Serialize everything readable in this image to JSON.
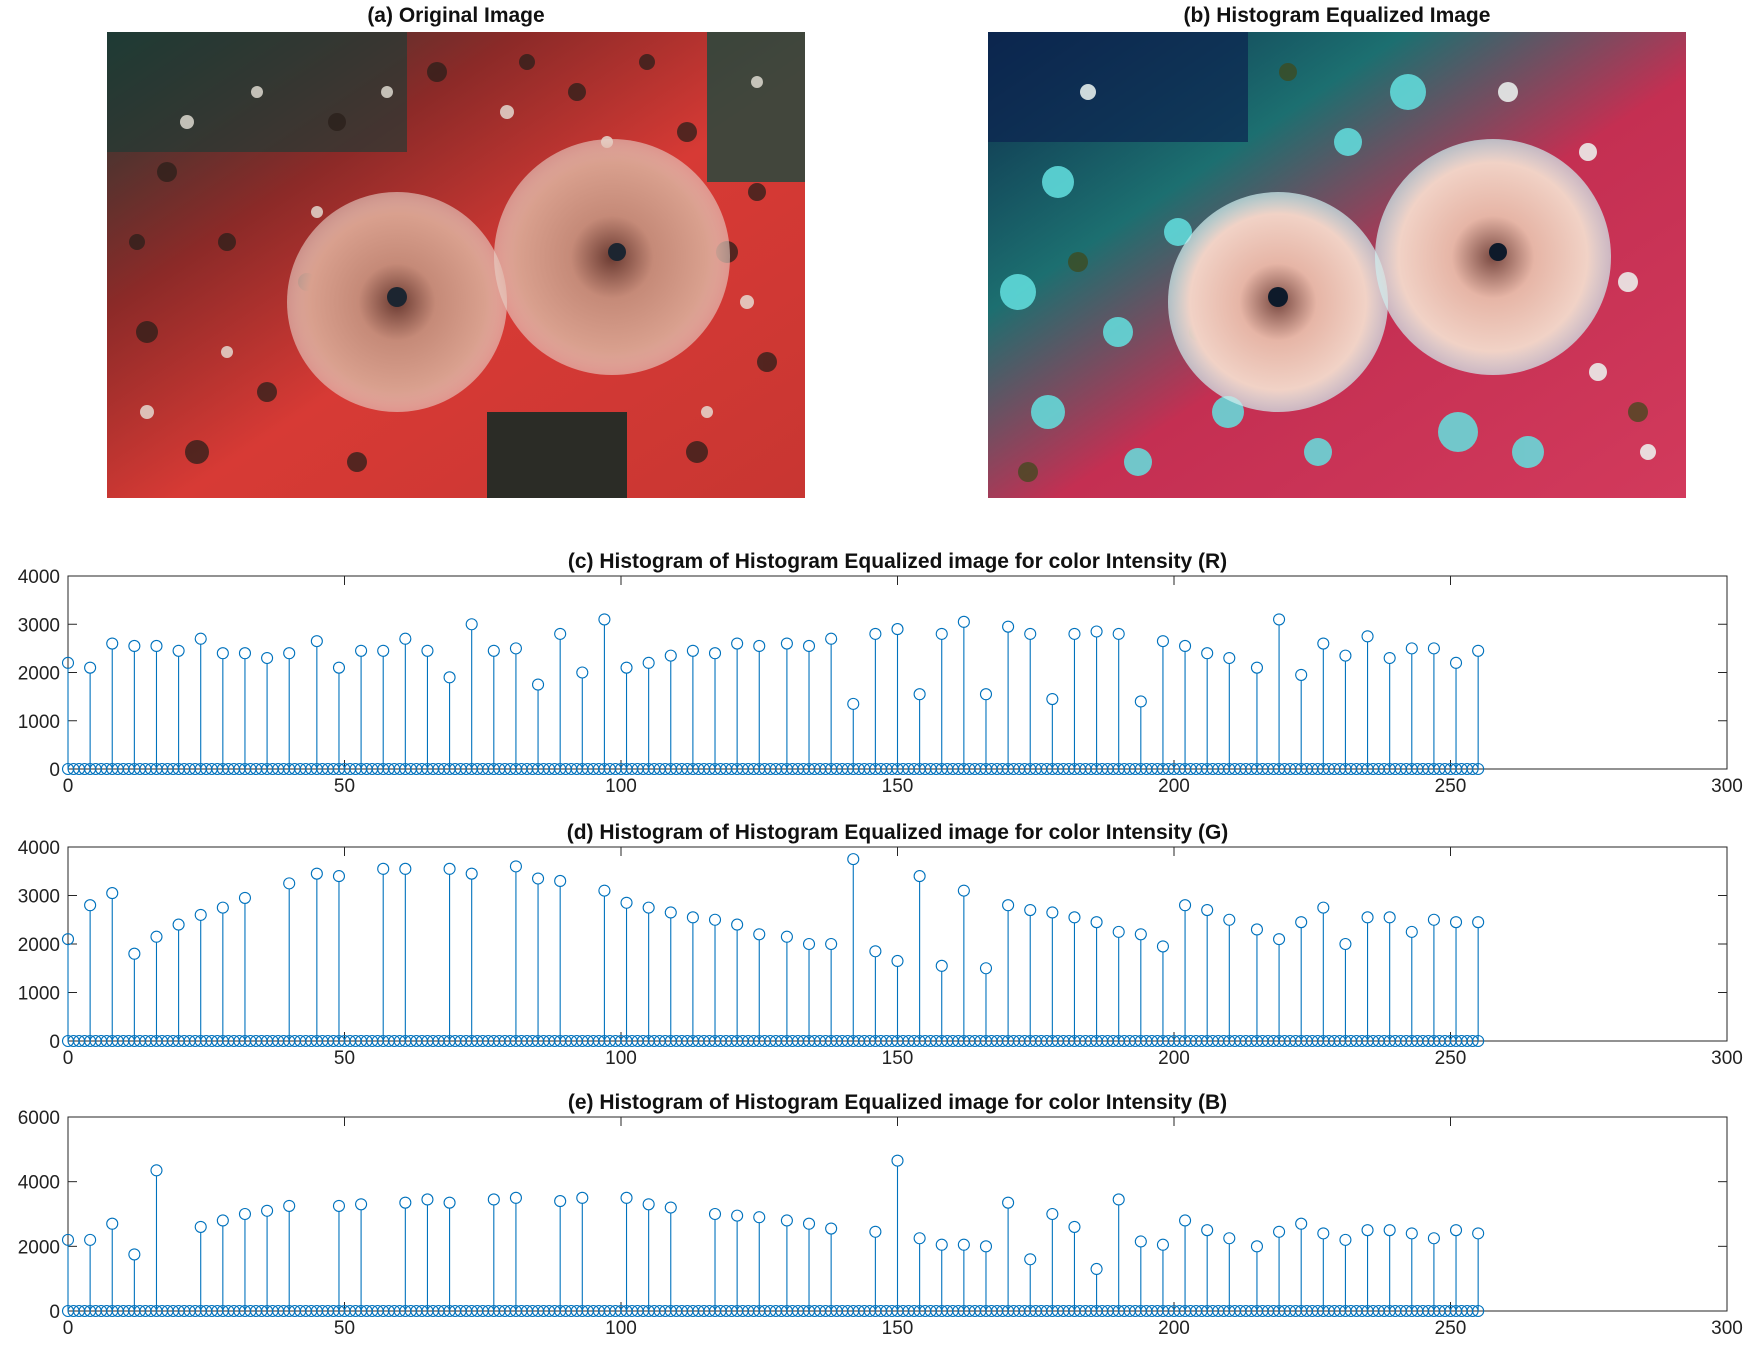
{
  "images": [
    {
      "title": "(a) Original Image",
      "subject": "original-photo"
    },
    {
      "title": "(b) Histogram Equalized Image",
      "subject": "equalized-photo"
    }
  ],
  "chart_data": [
    {
      "type": "stem",
      "title": "(c) Histogram of Histogram Equalized image for color Intensity (R)",
      "xlim": [
        0,
        300
      ],
      "ylim": [
        0,
        4000
      ],
      "xticks": [
        0,
        50,
        100,
        150,
        200,
        250,
        300
      ],
      "yticks": [
        0,
        1000,
        2000,
        3000,
        4000
      ],
      "color": "#0072BD",
      "x": [
        0,
        4,
        8,
        12,
        16,
        20,
        24,
        28,
        32,
        36,
        40,
        45,
        49,
        53,
        57,
        61,
        65,
        69,
        73,
        77,
        81,
        85,
        89,
        93,
        97,
        101,
        105,
        109,
        113,
        117,
        121,
        125,
        130,
        134,
        138,
        142,
        146,
        150,
        154,
        158,
        162,
        166,
        170,
        174,
        178,
        182,
        186,
        190,
        194,
        198,
        202,
        206,
        210,
        215,
        219,
        223,
        227,
        231,
        235,
        239,
        243,
        247,
        251,
        255
      ],
      "y": [
        2200,
        2100,
        2600,
        2550,
        2550,
        2450,
        2700,
        2400,
        2400,
        2300,
        2400,
        2650,
        2100,
        2450,
        2450,
        2700,
        2450,
        1900,
        3000,
        2450,
        2500,
        1750,
        2800,
        2000,
        3100,
        2100,
        2200,
        2350,
        2450,
        2400,
        2600,
        2550,
        2600,
        2550,
        2700,
        1350,
        2800,
        2900,
        1550,
        2800,
        3050,
        1550,
        2950,
        2800,
        1450,
        2800,
        2850,
        2800,
        1400,
        2650,
        2550,
        2400,
        2300,
        2100,
        3100,
        1950,
        2600,
        2350,
        2750,
        2300,
        2500,
        2500,
        2200,
        2450
      ]
    },
    {
      "type": "stem",
      "title": "(d) Histogram of Histogram Equalized image for color Intensity (G)",
      "xlim": [
        0,
        300
      ],
      "ylim": [
        0,
        4000
      ],
      "xticks": [
        0,
        50,
        100,
        150,
        200,
        250,
        300
      ],
      "yticks": [
        0,
        1000,
        2000,
        3000,
        4000
      ],
      "color": "#0072BD",
      "x": [
        0,
        4,
        8,
        12,
        16,
        20,
        24,
        28,
        32,
        40,
        45,
        49,
        57,
        61,
        69,
        73,
        81,
        85,
        89,
        97,
        101,
        105,
        109,
        113,
        117,
        121,
        125,
        130,
        134,
        138,
        142,
        146,
        150,
        154,
        158,
        162,
        166,
        170,
        174,
        178,
        182,
        186,
        190,
        194,
        198,
        202,
        206,
        210,
        215,
        219,
        223,
        227,
        231,
        235,
        239,
        243,
        247,
        251,
        255
      ],
      "y": [
        2100,
        2800,
        3050,
        1800,
        2150,
        2400,
        2600,
        2750,
        2950,
        3250,
        3450,
        3400,
        3550,
        3550,
        3550,
        3450,
        3600,
        3350,
        3300,
        3100,
        2850,
        2750,
        2650,
        2550,
        2500,
        2400,
        2200,
        2150,
        2000,
        2000,
        3750,
        1850,
        1650,
        3400,
        1550,
        3100,
        1500,
        2800,
        2700,
        2650,
        2550,
        2450,
        2250,
        2200,
        1950,
        2800,
        2700,
        2500,
        2300,
        2100,
        2450,
        2750,
        2000,
        2550,
        2550,
        2250,
        2500,
        2450,
        2450
      ]
    },
    {
      "type": "stem",
      "title": "(e) Histogram of Histogram Equalized image for color Intensity (B)",
      "xlim": [
        0,
        300
      ],
      "ylim": [
        0,
        6000
      ],
      "xticks": [
        0,
        50,
        100,
        150,
        200,
        250,
        300
      ],
      "yticks": [
        0,
        2000,
        4000,
        6000
      ],
      "color": "#0072BD",
      "x": [
        0,
        4,
        8,
        12,
        16,
        24,
        28,
        32,
        36,
        40,
        49,
        53,
        61,
        65,
        69,
        77,
        81,
        89,
        93,
        101,
        105,
        109,
        117,
        121,
        125,
        130,
        134,
        138,
        146,
        150,
        154,
        158,
        162,
        166,
        170,
        174,
        178,
        182,
        186,
        190,
        194,
        198,
        202,
        206,
        210,
        215,
        219,
        223,
        227,
        231,
        235,
        239,
        243,
        247,
        251,
        255
      ],
      "y": [
        2200,
        2200,
        2700,
        1750,
        4350,
        2600,
        2800,
        3000,
        3100,
        3250,
        3250,
        3300,
        3350,
        3450,
        3350,
        3450,
        3500,
        3400,
        3500,
        3500,
        3300,
        3200,
        3000,
        2950,
        2900,
        2800,
        2700,
        2550,
        2450,
        4650,
        2250,
        2050,
        2050,
        2000,
        3350,
        1600,
        3000,
        2600,
        1300,
        3450,
        2150,
        2050,
        2800,
        2500,
        2250,
        2000,
        2450,
        2700,
        2400,
        2200,
        2500,
        2500,
        2400,
        2250,
        2500,
        2400
      ]
    }
  ]
}
